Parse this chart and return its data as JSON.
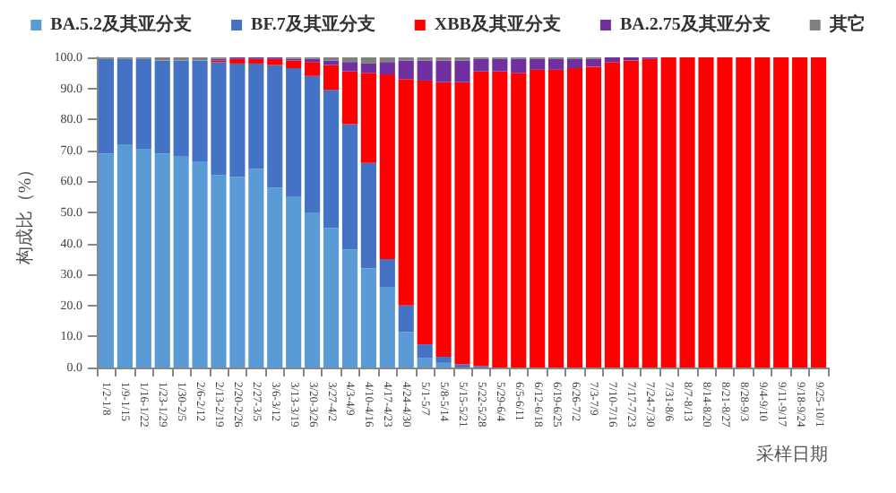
{
  "chart_data": {
    "type": "bar",
    "stacked": true,
    "xlabel": "采样日期",
    "ylabel": "构成比（%）",
    "categories": [
      "1/2-1/8",
      "1/9-1/15",
      "1/16-1/22",
      "1/23-1/29",
      "1/30-2/5",
      "2/6-2/12",
      "2/13-2/19",
      "2/20-2/26",
      "2/27-3/5",
      "3/6-3/12",
      "3/13-3/19",
      "3/20-3/26",
      "3/27-4/2",
      "4/3-4/9",
      "4/10-4/16",
      "4/17-4/23",
      "4/24-4/30",
      "5/1-5/7",
      "5/8-5/14",
      "5/15-5/21",
      "5/22-5/28",
      "5/29-6/4",
      "6/5-6/11",
      "6/12-6/18",
      "6/19-6/25",
      "6/26-7/2",
      "7/3-7/9",
      "7/10-7/16",
      "7/17-7/23",
      "7/24-7/30",
      "7/31-8/6",
      "8/7-8/13",
      "8/14-8/20",
      "8/21-8/27",
      "8/28-9/3",
      "9/4-9/10",
      "9/11-9/17",
      "9/18-9/24",
      "9/25-10/1"
    ],
    "series": [
      {
        "name": "BA.5.2及其亚分支",
        "color": "#5b9bd5",
        "values": [
          69,
          72,
          70.5,
          69,
          68,
          66.5,
          62,
          61.5,
          64,
          58,
          55,
          50,
          45,
          38,
          32,
          26,
          11.5,
          3,
          1.5,
          0,
          0,
          0,
          0,
          0,
          0,
          0,
          0,
          0,
          0,
          0,
          0,
          0,
          0,
          0,
          0,
          0,
          0,
          0,
          0
        ]
      },
      {
        "name": "BF.7及其亚分支",
        "color": "#4472c4",
        "values": [
          30.5,
          27.5,
          29,
          30,
          31,
          32.5,
          36.5,
          36.5,
          34,
          39.5,
          41.5,
          44,
          44.5,
          40.5,
          34,
          9,
          8.5,
          4.5,
          2,
          1,
          0.5,
          0,
          0,
          0,
          0,
          0,
          0,
          0,
          0,
          0,
          0,
          0,
          0,
          0,
          0,
          0,
          0,
          0,
          0
        ]
      },
      {
        "name": "XBB及其亚分支",
        "color": "#ff0000",
        "values": [
          0,
          0,
          0,
          0,
          0,
          0,
          0.5,
          1.5,
          1.5,
          2,
          2.5,
          4.5,
          8,
          17,
          29,
          59.5,
          73,
          85,
          88.5,
          91,
          95,
          95.5,
          95,
          96,
          96,
          96.5,
          97,
          98.5,
          99,
          99.5,
          100,
          100,
          100,
          100,
          100,
          100,
          100,
          100,
          100
        ]
      },
      {
        "name": "BA.2.75及其亚分支",
        "color": "#7030a0",
        "values": [
          0,
          0,
          0,
          0,
          0,
          0,
          0.5,
          0.5,
          0.5,
          0.5,
          0.5,
          1,
          1.5,
          3,
          3,
          4,
          6,
          6.5,
          7,
          7,
          4,
          4,
          4.5,
          3.5,
          3.5,
          3,
          2.5,
          1.5,
          1,
          0.5,
          0,
          0,
          0,
          0,
          0,
          0,
          0,
          0,
          0
        ]
      },
      {
        "name": "其它",
        "color": "#808080",
        "values": [
          0.5,
          0.5,
          0.5,
          1,
          1,
          1,
          0.5,
          0,
          0,
          0,
          0.5,
          0.5,
          1,
          1.5,
          2,
          1.5,
          1,
          1,
          1,
          1,
          0.5,
          0.5,
          0.5,
          0.5,
          0.5,
          0.5,
          0.5,
          0,
          0,
          0,
          0,
          0,
          0,
          0,
          0,
          0,
          0,
          0,
          0
        ]
      }
    ],
    "ylim": [
      0,
      100
    ],
    "yticks": [
      {
        "value": 0,
        "label": "0.0"
      },
      {
        "value": 10,
        "label": "10.0"
      },
      {
        "value": 20,
        "label": "20.0"
      },
      {
        "value": 30,
        "label": "30.0"
      },
      {
        "value": 40,
        "label": "40.0"
      },
      {
        "value": 50,
        "label": "50.0"
      },
      {
        "value": 60,
        "label": "60.0"
      },
      {
        "value": 70,
        "label": "70.0"
      },
      {
        "value": 80,
        "label": "80.0"
      },
      {
        "value": 90,
        "label": "90.0"
      },
      {
        "value": 100,
        "label": "100.0"
      }
    ],
    "legend": "top",
    "grid": false
  }
}
